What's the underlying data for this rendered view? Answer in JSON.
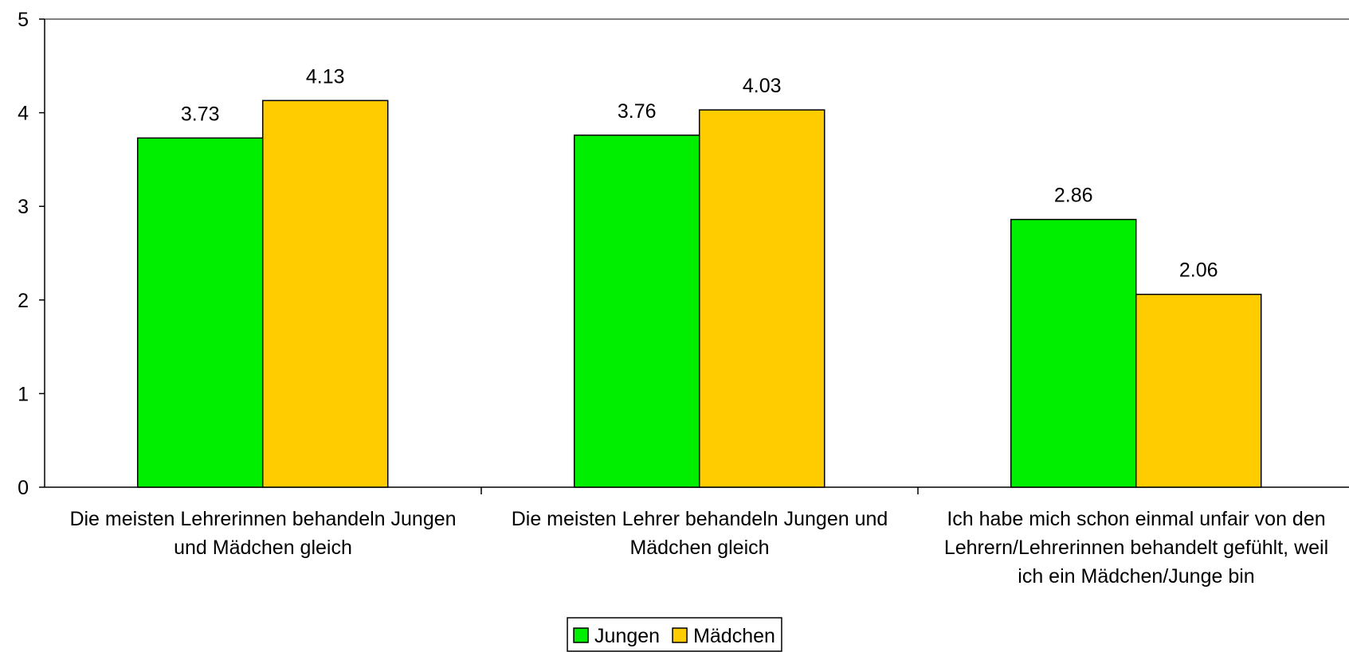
{
  "chart_data": {
    "type": "bar",
    "categories": [
      "Die meisten Lehrerinnen behandeln Jungen und Mädchen gleich",
      "Die meisten Lehrer behandeln Jungen und Mädchen gleich",
      "Ich habe mich schon einmal unfair von den Lehrern/Lehrerinnen behandelt gefühlt, weil ich ein Mädchen/Junge bin"
    ],
    "series": [
      {
        "name": "Jungen",
        "color": "#00ee00",
        "values": [
          3.73,
          3.76,
          2.86
        ]
      },
      {
        "name": "Mädchen",
        "color": "#ffcc00",
        "values": [
          4.13,
          4.03,
          2.06
        ]
      }
    ],
    "ylim": [
      0,
      5
    ],
    "yticks": [
      0,
      1,
      2,
      3,
      4,
      5
    ],
    "legend": "bottom"
  }
}
